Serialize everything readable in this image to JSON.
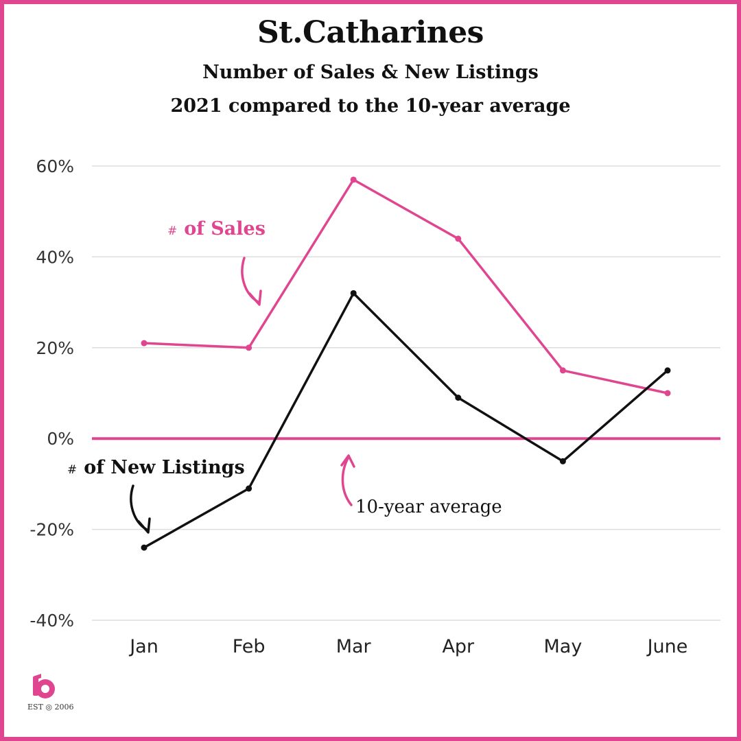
{
  "title": "St.Catharines",
  "subtitle_line1": "Number of Sales & New Listings",
  "subtitle_line2": "2021 compared to the 10-year average",
  "annotations": {
    "sales_hash": "#",
    "sales_label": "of Sales",
    "listings_hash": "#",
    "listings_label": "of New Listings",
    "average_label": "10-year average"
  },
  "logo": {
    "icon": "b-logo-icon",
    "est_text": "EST ◎ 2006"
  },
  "colors": {
    "accent": "#e0468f",
    "listings": "#111111",
    "grid": "#dddddd"
  },
  "chart_data": {
    "type": "line",
    "categories": [
      "Jan",
      "Feb",
      "Mar",
      "Apr",
      "May",
      "June"
    ],
    "ylim": [
      -40,
      60
    ],
    "yticks": [
      60,
      40,
      20,
      0,
      -20,
      -40
    ],
    "ytick_labels": [
      "60%",
      "40%",
      "20%",
      "0%",
      "-20%",
      "-40%"
    ],
    "grid": true,
    "reference_line": 0,
    "series": [
      {
        "key": "sales",
        "color": "#e0468f",
        "values": [
          21,
          20,
          57,
          44,
          15,
          10
        ]
      },
      {
        "key": "listings",
        "color": "#111111",
        "values": [
          -24,
          -11,
          32,
          9,
          -5,
          15
        ]
      }
    ]
  }
}
